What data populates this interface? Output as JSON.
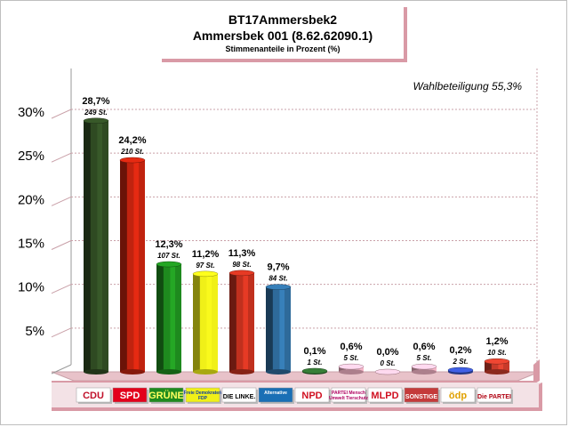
{
  "title": {
    "line1": "BT17Ammersbek2",
    "line2": "Ammersbek 001 (8.62.62090.1)",
    "line3": "Stimmenanteile in Prozent (%)"
  },
  "turnout": "Wahlbeteiligung 55,3%",
  "colors": {
    "frame_pink": "#d99aa6",
    "grid": "#c9a0a8"
  },
  "chart_data": {
    "type": "bar",
    "title": "Stimmenanteile in Prozent (%)",
    "ylim": [
      0,
      30
    ],
    "yticks": [
      5,
      10,
      15,
      20,
      25,
      30
    ],
    "ytick_labels": [
      "5%",
      "10%",
      "15%",
      "20%",
      "25%",
      "30%"
    ],
    "categories": [
      "CDU",
      "SPD",
      "GRÜNE",
      "FDP",
      "DIE LINKE",
      "AfD",
      "NPD",
      "Tierschutzpartei",
      "MLPD",
      "SONSTIGE",
      "ödp",
      "Die PARTEI"
    ],
    "values": [
      28.7,
      24.2,
      12.3,
      11.2,
      11.3,
      9.7,
      0.1,
      0.6,
      0.0,
      0.6,
      0.2,
      1.2
    ],
    "value_labels": [
      "28,7%",
      "24,2%",
      "12,3%",
      "11,2%",
      "11,3%",
      "9,7%",
      "0,1%",
      "0,6%",
      "0,0%",
      "0,6%",
      "0,2%",
      "1,2%"
    ],
    "votes": [
      "249 St.",
      "210 St.",
      "107 St.",
      "97 St.",
      "98 St.",
      "84 St.",
      "1 St.",
      "5 St.",
      "0 St.",
      "5 St.",
      "2 St.",
      "10 St."
    ],
    "colors": [
      "#2f4a22",
      "#c0230f",
      "#1e8a1e",
      "#f0f018",
      "#c0301e",
      "#2e6a9a",
      "#2e6a2e",
      "#f5b6c8",
      "#f5b6c8",
      "#f5b6c8",
      "#3550c0",
      "#c83a2a"
    ],
    "legend": {
      "logos": [
        {
          "text": "CDU",
          "bg": "#ffffff",
          "fg": "#c0102a",
          "border": "#999999"
        },
        {
          "text": "SPD",
          "bg": "#e3001b",
          "fg": "#ffffff",
          "border": "#999999"
        },
        {
          "text": "GRÜNE",
          "bg": "#1e8a1e",
          "fg": "#ffff60",
          "border": "#999999"
        },
        {
          "text": "Freie Demokraten FDP",
          "bg": "#f0f018",
          "fg": "#1040a0",
          "border": "#999999"
        },
        {
          "text": "DIE LINKE.",
          "bg": "#ffffff",
          "fg": "#000000",
          "border": "#999999"
        },
        {
          "text": "Alternative",
          "bg": "#1a6fb5",
          "fg": "#ffffff",
          "border": "#999999"
        },
        {
          "text": "NPD",
          "bg": "#ffffff",
          "fg": "#d01020",
          "border": "#999999"
        },
        {
          "text": "PARTEI Mensch Umwelt Tierschutz",
          "bg": "#ffffff",
          "fg": "#b00060",
          "border": "#999999"
        },
        {
          "text": "MLPD",
          "bg": "#ffffff",
          "fg": "#d01020",
          "border": "#999999"
        },
        {
          "text": "SONSTIGE",
          "bg": "#c43a3a",
          "fg": "#ffffff",
          "border": "#999999"
        },
        {
          "text": "ödp",
          "bg": "#ffffff",
          "fg": "#e0a000",
          "border": "#999999"
        },
        {
          "text": "Die PARTEI",
          "bg": "#ffffff",
          "fg": "#b00010",
          "border": "#999999"
        }
      ]
    }
  }
}
